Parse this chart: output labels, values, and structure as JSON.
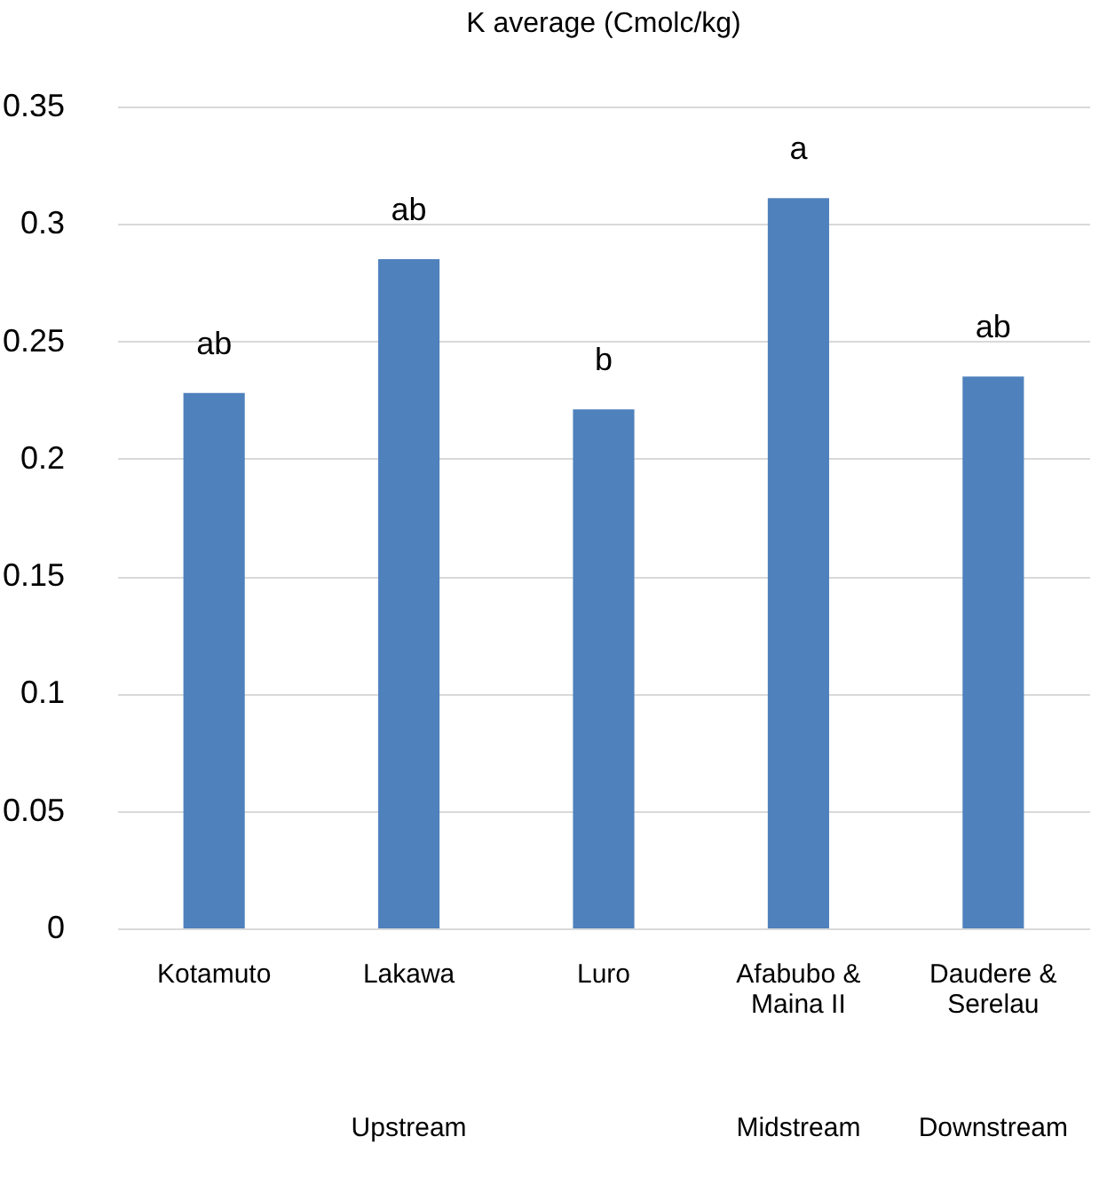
{
  "chart_data": {
    "type": "bar",
    "title": "K average (Cmolc/kg)",
    "categories": [
      "Kotamuto",
      "Lakawa",
      "Luro",
      "Afabubo & Maina II",
      "Daudere & Serelau"
    ],
    "values": [
      0.228,
      0.285,
      0.221,
      0.311,
      0.235
    ],
    "color": "#4f81bd",
    "ylim": [
      0,
      0.35
    ],
    "yticks": [
      0,
      0.05,
      0.1,
      0.15,
      0.2,
      0.25,
      0.3,
      0.35
    ],
    "grid": "y",
    "annotations": [
      {
        "text": "ab",
        "x": "Kotamuto",
        "y": 0.228
      },
      {
        "text": "ab",
        "x": "Lakawa",
        "y": 0.285
      },
      {
        "text": "b",
        "x": "Luro",
        "y": 0.221
      },
      {
        "text": "a",
        "x": "Afabubo & Maina II",
        "y": 0.311
      },
      {
        "text": "ab",
        "x": "Daudere & Serelau",
        "y": 0.235
      },
      "Upstream",
      "Midstream",
      "Downstream"
    ]
  }
}
